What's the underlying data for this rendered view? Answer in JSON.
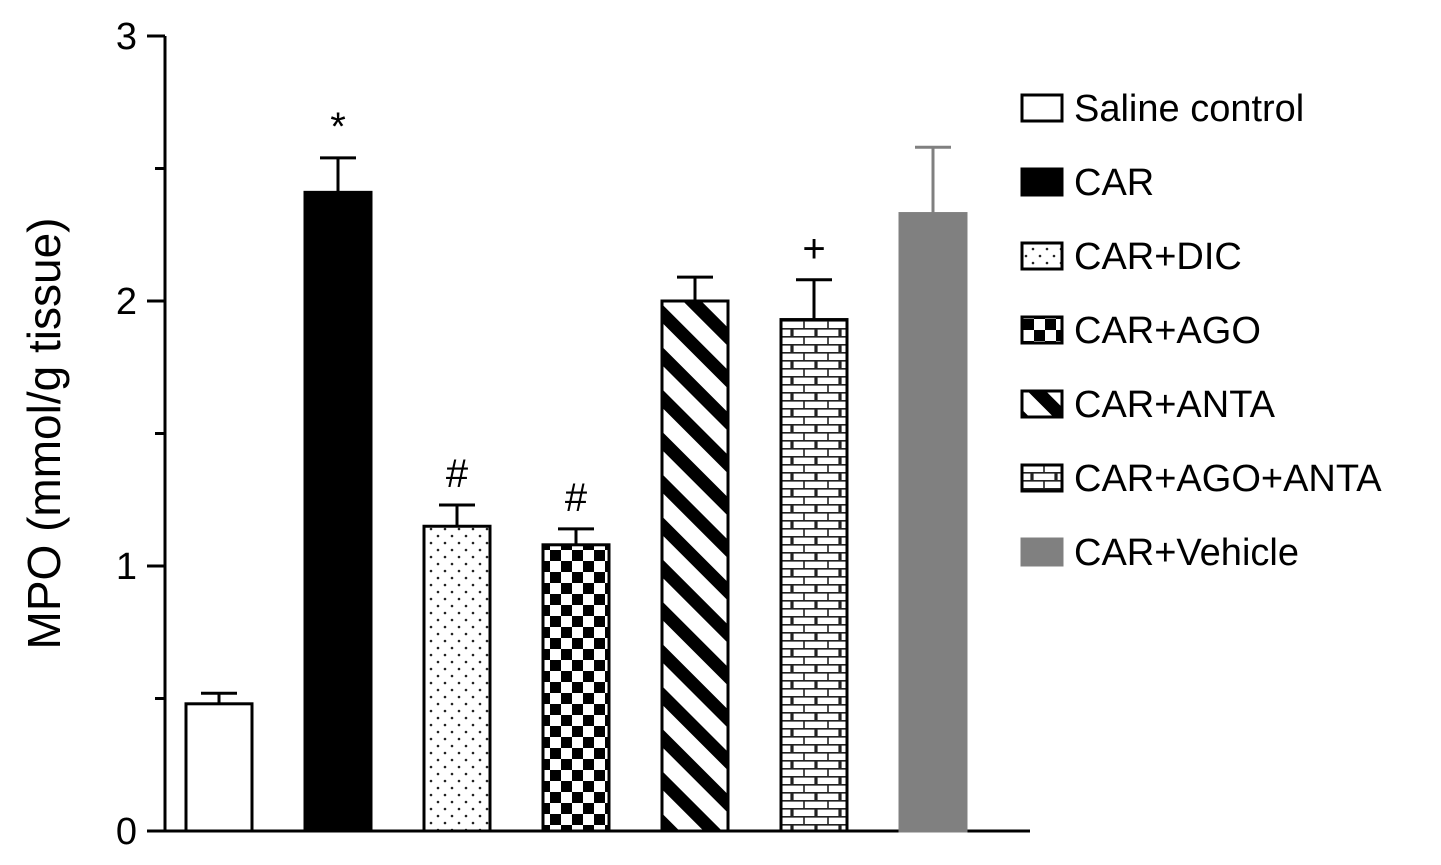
{
  "chart_data": {
    "type": "bar",
    "title": "",
    "xlabel": "",
    "ylabel": "MPO (mmol/g tissue)",
    "ylim": [
      0,
      3
    ],
    "yticks": [
      "0",
      "1",
      "2",
      "3"
    ],
    "grid": false,
    "legend_position": "right",
    "categories": [
      "Saline control",
      "CAR",
      "CAR+DIC",
      "CAR+AGO",
      "CAR+ANTA",
      "CAR+AGO+ANTA",
      "CAR+Vehicle"
    ],
    "values": [
      0.48,
      2.41,
      1.15,
      1.08,
      2.0,
      1.93,
      2.33
    ],
    "errors": [
      0.04,
      0.13,
      0.08,
      0.06,
      0.09,
      0.15,
      0.25
    ],
    "annotations": [
      "",
      "*",
      "#",
      "#",
      "",
      "+",
      ""
    ],
    "series_styles": [
      {
        "pattern": "none",
        "fill": "#ffffff"
      },
      {
        "pattern": "solid",
        "fill": "#000000"
      },
      {
        "pattern": "dots",
        "fill": "#ffffff"
      },
      {
        "pattern": "checker",
        "fill": "#ffffff"
      },
      {
        "pattern": "diagonal",
        "fill": "#ffffff"
      },
      {
        "pattern": "brick",
        "fill": "#ffffff"
      },
      {
        "pattern": "solid",
        "fill": "#808080"
      }
    ]
  }
}
